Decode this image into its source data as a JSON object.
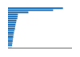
{
  "chart_data": {
    "type": "bar",
    "orientation": "horizontal",
    "values": [
      18.9,
      15.5,
      7.0,
      3.4,
      3.3,
      3.2,
      2.9,
      2.8,
      2.6,
      2.5,
      2.4,
      2.2,
      2.0,
      1.9,
      1.8,
      1.7,
      1.6,
      1.5,
      1.4,
      1.3
    ],
    "colors": [
      "#1a6fba",
      "#1a6fba",
      "#1a6fba",
      "#1a6fba",
      "#1a6fba",
      "#1a6fba",
      "#1a6fba",
      "#1a6fba",
      "#1a6fba",
      "#1a6fba",
      "#1a6fba",
      "#1a6fba",
      "#1a6fba",
      "#1a6fba",
      "#1a6fba",
      "#1a6fba",
      "#1a6fba",
      "#1a6fba",
      "#1a6fba",
      "#b8d4ea"
    ],
    "xlim": [
      0,
      22
    ],
    "tick_labels": false
  }
}
